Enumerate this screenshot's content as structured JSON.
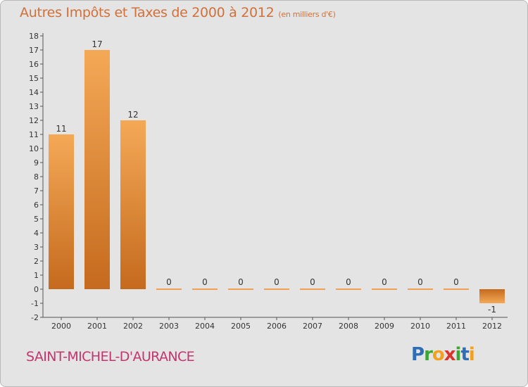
{
  "header": {
    "title": "Autres Impôts et Taxes de 2000 à 2012",
    "unit": "(en milliers d'€)"
  },
  "footer": {
    "town": "SAINT-MICHEL-D'AURANCE",
    "logo": "Proxiti"
  },
  "chart_data": {
    "type": "bar",
    "categories": [
      "2000",
      "2001",
      "2002",
      "2003",
      "2004",
      "2005",
      "2006",
      "2007",
      "2008",
      "2009",
      "2010",
      "2011",
      "2012"
    ],
    "values": [
      11,
      17,
      12,
      0,
      0,
      0,
      0,
      0,
      0,
      0,
      0,
      0,
      -1
    ],
    "data_labels": [
      "11",
      "17",
      "12",
      "0",
      "0",
      "0",
      "0",
      "0",
      "0",
      "0",
      "0",
      "0",
      "-1"
    ],
    "ylim": [
      -2,
      18
    ],
    "yticks": [
      -2,
      -1,
      0,
      1,
      2,
      3,
      4,
      5,
      6,
      7,
      8,
      9,
      10,
      11,
      12,
      13,
      14,
      15,
      16,
      17,
      18
    ],
    "grid": false,
    "colors": {
      "bar": "#f0a050",
      "bar_dark": "#c96a1c",
      "axis": "#555555"
    }
  }
}
